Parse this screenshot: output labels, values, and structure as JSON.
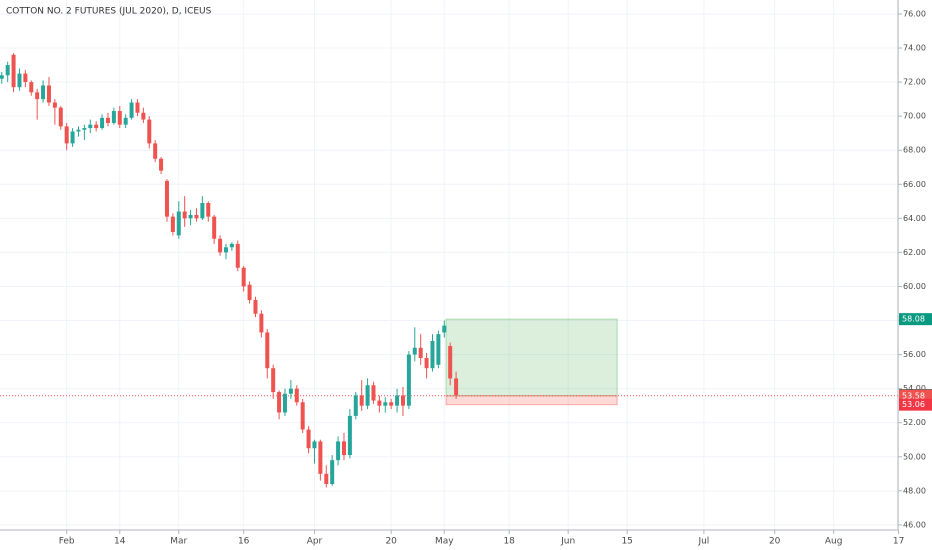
{
  "chart_data": {
    "type": "candlestick",
    "title": "COTTON NO. 2 FUTURES (JUL 2020), D, ICEUS",
    "up_color": "#26a69a",
    "down_color": "#ef5350",
    "open": [
      72.2,
      72.4,
      73.6,
      71.7,
      72.5,
      72.0,
      71.4,
      71.0,
      71.8,
      70.8,
      70.5,
      69.4,
      68.4,
      69.1,
      69.2,
      69.3,
      69.5,
      69.3,
      69.9,
      69.6,
      70.3,
      69.5,
      69.9,
      70.8,
      70.2,
      69.8,
      68.4,
      67.5,
      66.2,
      64.1,
      63.0,
      64.4,
      64.0,
      64.2,
      64.0,
      64.9,
      64.1,
      62.8,
      62.0,
      62.3,
      62.5,
      61.1,
      60.1,
      59.2,
      58.4,
      57.3,
      55.2,
      53.8,
      52.6,
      53.7,
      54.0,
      53.2,
      51.6,
      50.5,
      50.9,
      49.0,
      48.4,
      49.8,
      50.9,
      50.1,
      52.4,
      53.6,
      53.0,
      54.2,
      53.3,
      53.0,
      53.2,
      53.0,
      53.6,
      53.0,
      56.0,
      56.4,
      55.8,
      55.2,
      55.4,
      57.3,
      56.5,
      54.6
    ],
    "high": [
      72.6,
      73.2,
      73.7,
      72.8,
      72.7,
      72.1,
      71.6,
      72.1,
      72.3,
      71.0,
      70.6,
      69.6,
      69.3,
      69.4,
      69.5,
      69.8,
      69.7,
      70.1,
      70.2,
      70.5,
      70.6,
      70.1,
      71.0,
      71.0,
      70.5,
      70.0,
      68.6,
      67.6,
      66.3,
      64.3,
      65.0,
      65.3,
      64.5,
      64.6,
      65.3,
      65.0,
      64.2,
      63.0,
      62.5,
      62.6,
      62.7,
      61.2,
      60.3,
      59.4,
      58.6,
      57.5,
      55.4,
      53.9,
      54.0,
      54.5,
      54.2,
      53.4,
      51.8,
      51.0,
      51.0,
      49.5,
      50.1,
      51.2,
      51.4,
      52.8,
      53.8,
      54.5,
      54.6,
      54.4,
      53.6,
      53.5,
      53.4,
      54.0,
      54.1,
      56.2,
      57.6,
      57.2,
      56.1,
      57.2,
      57.4,
      58.0,
      56.7,
      55.0
    ],
    "low": [
      71.9,
      72.0,
      71.4,
      71.5,
      71.7,
      71.2,
      69.8,
      70.8,
      70.6,
      69.5,
      69.2,
      68.0,
      68.2,
      68.8,
      68.6,
      69.0,
      69.1,
      69.2,
      69.4,
      69.5,
      69.3,
      69.3,
      69.8,
      70.0,
      69.6,
      68.1,
      67.3,
      66.6,
      63.8,
      63.0,
      62.8,
      63.5,
      63.6,
      63.8,
      63.9,
      63.8,
      62.5,
      61.8,
      61.6,
      62.1,
      60.9,
      59.7,
      59.0,
      58.2,
      57.0,
      54.6,
      53.4,
      52.2,
      52.4,
      53.4,
      53.0,
      51.4,
      50.2,
      49.6,
      48.6,
      48.2,
      48.3,
      49.5,
      49.8,
      49.9,
      52.2,
      52.7,
      52.8,
      53.1,
      52.6,
      52.6,
      52.8,
      52.6,
      52.4,
      52.8,
      55.6,
      55.4,
      54.6,
      55.0,
      55.2,
      57.0,
      54.2,
      53.4
    ],
    "close": [
      72.4,
      73.0,
      71.7,
      72.5,
      72.0,
      71.4,
      71.0,
      71.8,
      70.8,
      70.5,
      69.4,
      68.4,
      69.1,
      69.2,
      69.3,
      69.5,
      69.3,
      69.9,
      69.6,
      70.3,
      69.5,
      69.9,
      70.8,
      70.2,
      69.8,
      68.4,
      67.5,
      66.8,
      64.1,
      63.2,
      64.4,
      64.0,
      64.2,
      64.0,
      64.9,
      64.1,
      62.8,
      62.0,
      62.3,
      62.5,
      61.1,
      60.0,
      59.2,
      58.4,
      57.3,
      55.2,
      53.8,
      52.6,
      53.7,
      54.0,
      53.2,
      51.6,
      50.5,
      50.9,
      49.0,
      48.4,
      49.8,
      50.9,
      50.1,
      52.4,
      53.6,
      53.0,
      54.2,
      53.3,
      53.0,
      53.2,
      53.0,
      53.6,
      53.0,
      56.0,
      56.4,
      55.8,
      55.2,
      56.8,
      57.2,
      57.7,
      54.6,
      53.62
    ],
    "xlim": [
      -0.3,
      151.9
    ],
    "xticks": [
      {
        "value": 11,
        "label": "Feb"
      },
      {
        "value": 20,
        "label": "14"
      },
      {
        "value": 30,
        "label": "Mar"
      },
      {
        "value": 41,
        "label": "16"
      },
      {
        "value": 53,
        "label": "Apr"
      },
      {
        "value": 66,
        "label": "20"
      },
      {
        "value": 75,
        "label": "May"
      },
      {
        "value": 86,
        "label": "18"
      },
      {
        "value": 96,
        "label": "Jun"
      },
      {
        "value": 106,
        "label": "15"
      },
      {
        "value": 119,
        "label": "Jul"
      },
      {
        "value": 131,
        "label": "20"
      },
      {
        "value": 141,
        "label": "Aug"
      },
      {
        "value": 152,
        "label": "17"
      }
    ],
    "ylim": [
      45.7,
      76.82
    ],
    "yticks": [
      {
        "value": 46,
        "label": "46.00"
      },
      {
        "value": 48,
        "label": "48.00"
      },
      {
        "value": 50,
        "label": "50.00"
      },
      {
        "value": 52,
        "label": "52.00"
      },
      {
        "value": 54,
        "label": "54.00"
      },
      {
        "value": 56,
        "label": "56.00"
      },
      {
        "value": 58,
        "label": "58.00"
      },
      {
        "value": 60,
        "label": "60.00"
      },
      {
        "value": 62,
        "label": "62.00"
      },
      {
        "value": 64,
        "label": "64.00"
      },
      {
        "value": 66,
        "label": "66.00"
      },
      {
        "value": 68,
        "label": "68.00"
      },
      {
        "value": 70,
        "label": "70.00"
      },
      {
        "value": 72,
        "label": "72.00"
      },
      {
        "value": 74,
        "label": "74.00"
      },
      {
        "value": 76,
        "label": "76.00"
      }
    ],
    "grid": true,
    "position": {
      "start": 75.3,
      "end": 104.3,
      "target": 58.08,
      "entry": 53.58,
      "stop": 53.06
    },
    "last_price": 53.62
  }
}
